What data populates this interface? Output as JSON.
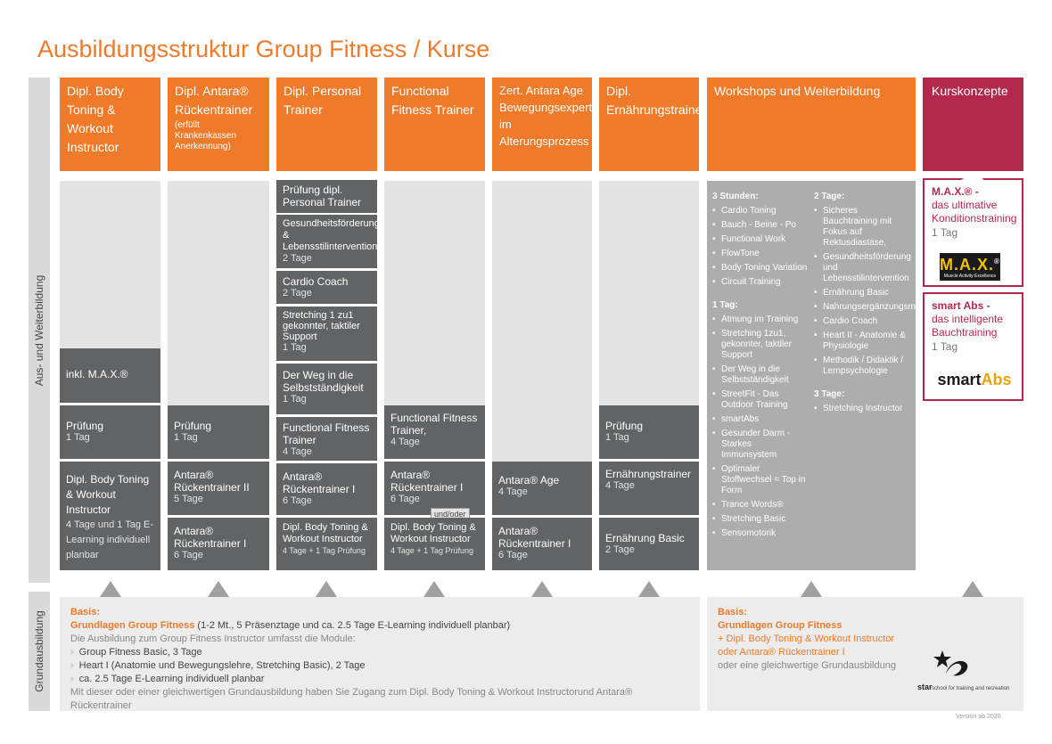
{
  "title": "Ausbildungsstruktur Group Fitness / Kurse",
  "sidebar": {
    "top_label": "Aus- und Weiterbildung",
    "bottom_label": "Grundausbildung"
  },
  "columns": [
    {
      "header": "Dipl. Body Toning & Workout Instructor",
      "header_sub": "",
      "modules": [
        {
          "title": "inkl. M.A.X.®",
          "detail": "",
          "small": ""
        },
        {
          "title": "Prüfung",
          "detail": "1 Tag",
          "small": ""
        },
        {
          "title": "Dipl. Body Toning & Workout Instructor",
          "detail": "4 Tage und 1 Tag E-Learning individuell planbar",
          "small": ""
        }
      ]
    },
    {
      "header": "Dipl. Antara® Rückentrainer",
      "header_sub": "(erfüllt Krankenkassen Anerkennung)",
      "modules": [
        {
          "title": "Prüfung",
          "detail": "1 Tag",
          "small": ""
        },
        {
          "title": "Antara® Rückentrainer II",
          "detail": "5 Tage",
          "small": ""
        },
        {
          "title": "Antara® Rückentrainer I",
          "detail": "6 Tage",
          "small": ""
        }
      ]
    },
    {
      "header": "Dipl. Personal Trainer",
      "header_sub": "",
      "modules": [
        {
          "title": "Prüfung dipl. Personal Trainer",
          "detail": "",
          "small": ""
        },
        {
          "title": "Gesundheitsförderung & Lebensstilintervention",
          "detail": "2 Tage",
          "small": ""
        },
        {
          "title": "Cardio Coach",
          "detail": "2 Tage",
          "small": ""
        },
        {
          "title": "Stretching 1 zu1 gekonnter, taktiler Support",
          "detail": "1 Tag",
          "small": ""
        },
        {
          "title": "Der Weg in die Selbstständigkeit",
          "detail": "1 Tag",
          "small": ""
        },
        {
          "title": "Functional Fitness Trainer",
          "detail": "4 Tage",
          "small": ""
        },
        {
          "title": "Antara® Rückentrainer I",
          "detail": "6 Tage",
          "small": ""
        },
        {
          "title": "Dipl. Body Toning & Workout Instructor",
          "detail": "",
          "small": "4 Tage + 1 Tag Prüfung"
        }
      ]
    },
    {
      "header": "Functional Fitness Trainer",
      "header_sub": "",
      "modules": [
        {
          "title": "Functional Fitness Trainer,",
          "detail": "4 Tage",
          "small": ""
        },
        {
          "title": "Antara® Rückentrainer I",
          "detail": "6 Tage",
          "small": ""
        },
        {
          "title": "Dipl. Body Toning & Workout Instructor",
          "detail": "",
          "small": "4 Tage + 1 Tag Prüfung"
        }
      ],
      "connector": "und/oder"
    },
    {
      "header": "Zert. Antara Age Bewegungsexperte im Alterungsprozess",
      "header_sub": "",
      "modules": [
        {
          "title": "Antara® Age",
          "detail": "4 Tage",
          "small": ""
        },
        {
          "title": "Antara® Rückentrainer I",
          "detail": "6 Tage",
          "small": ""
        }
      ]
    },
    {
      "header": "Dipl. Ernährungstrainer",
      "header_sub": "",
      "modules": [
        {
          "title": "Prüfung",
          "detail": "1 Tag",
          "small": ""
        },
        {
          "title": "Ernährungstrainer",
          "detail": "4 Tage",
          "small": ""
        },
        {
          "title": "Ernährung Basic",
          "detail": "2 Tage",
          "small": ""
        }
      ]
    }
  ],
  "workshops": {
    "header": "Workshops und Weiterbildung",
    "left": [
      {
        "heading": "3 Stunden:",
        "items": [
          "Cardio Toning",
          "Bauch - Beine - Po",
          "Functional Work",
          "FlowTone",
          "Body Toning Variation",
          "Circuit Training"
        ]
      },
      {
        "heading": "1 Tag:",
        "items": [
          "Atmung im Training",
          "Stretching 1zu1, gekonnter, taktiler Support",
          "Der Weg in die Selbstständigkeit",
          "StreetFit - Das Outdoor Training",
          "smartAbs",
          "Gesunder Darm - Starkes Immunsystem",
          "Optimaler Stoffwechsel = Top in Form",
          "Trance Words®",
          "Stretching Basic",
          "Sensomotorik"
        ]
      }
    ],
    "right": [
      {
        "heading": "2 Tage:",
        "items": [
          "Sicheres Bauchtraining mit Fokus auf Rektusdiastase,",
          "Gesundheitsförderung und Lebensstilintervention",
          "Ernährung Basic",
          "Nahrungsergänzungsmittel",
          "Cardio Coach",
          "Heart II - Anatomie & Physiologie",
          "Methodik / Didaktik / Lernpsychologie"
        ]
      },
      {
        "heading": "3 Tage:",
        "items": [
          "Stretching Instructor"
        ]
      }
    ]
  },
  "kurskonzepte": {
    "header": "Kurskonzepte",
    "items": [
      {
        "name": "M.A.X.® -",
        "desc": "das ultimative Konditionstraining",
        "duration": "1 Tag",
        "logo_text": "M.A.X.",
        "logo_reg": "®",
        "logo_sub": "Muscle Activity Excellence"
      },
      {
        "name": "smart Abs -",
        "desc": "das intelligente Bauchtraining",
        "duration": "1 Tag",
        "logo_text_1": "smart",
        "logo_text_2": "Abs"
      }
    ]
  },
  "basis_left": {
    "label": "Basis:",
    "course": "Grundlagen Group Fitness",
    "course_detail": "(1-2 Mt., 5 Präsenztage und ca. 2.5 Tage E-Learning individuell planbar)",
    "intro": "Die Ausbildung zum Group Fitness Instructor umfasst die Module:",
    "modules": [
      "Group Fitness Basic, 3 Tage",
      "Heart I (Anatomie und Bewegungslehre, Stretching Basic), 2 Tage",
      "ca. 2.5 Tage E-Learning individuell planbar"
    ],
    "footer": "Mit dieser oder einer gleichwertigen Grundausbildung haben Sie Zugang zum Dipl. Body Toning & Workout Instructorund Antara® Rückentrainer"
  },
  "basis_right": {
    "label": "Basis:",
    "course": "Grundlagen Group Fitness",
    "line1": "+ Dipl. Body Toning & Workout Instructor",
    "line2": "oder Antara® Rückentrainer I",
    "line3": "oder eine gleichwertige Grundausbildung"
  },
  "star_logo": {
    "name": "star",
    "tagline": "school for training and recreation"
  },
  "version": "Version ab 2020",
  "colors": {
    "orange": "#ee7a2a",
    "magenta": "#b3294e",
    "dark": "#626365",
    "light": "#e4e4e4"
  }
}
